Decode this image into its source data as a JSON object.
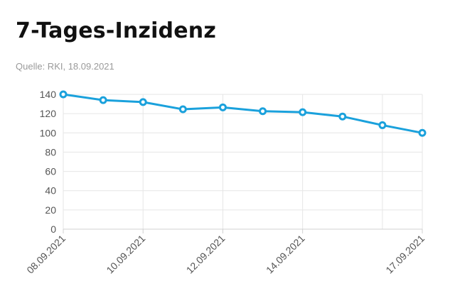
{
  "header": {
    "title": "7-Tages-Inzidenz",
    "source": "Quelle: RKI, 18.09.2021"
  },
  "colors": {
    "line": "#1aa1dc",
    "grid": "#e6e6e6"
  },
  "chart_data": {
    "type": "line",
    "title": "7-Tages-Inzidenz",
    "xlabel": "",
    "ylabel": "",
    "ylim": [
      0,
      140
    ],
    "yticks": [
      0,
      20,
      40,
      60,
      80,
      100,
      120,
      140
    ],
    "grid": true,
    "x": [
      "08.09.2021",
      "09.09.2021",
      "10.09.2021",
      "11.09.2021",
      "12.09.2021",
      "13.09.2021",
      "14.09.2021",
      "15.09.2021",
      "16.09.2021",
      "17.09.2021"
    ],
    "x_tick_labels": [
      "08.09.2021",
      "10.09.2021",
      "12.09.2021",
      "14.09.2021",
      "17.09.2021"
    ],
    "series": [
      {
        "values": [
          140,
          134,
          132,
          124.5,
          126.5,
          122.5,
          121.5,
          117,
          108,
          100
        ]
      }
    ]
  }
}
